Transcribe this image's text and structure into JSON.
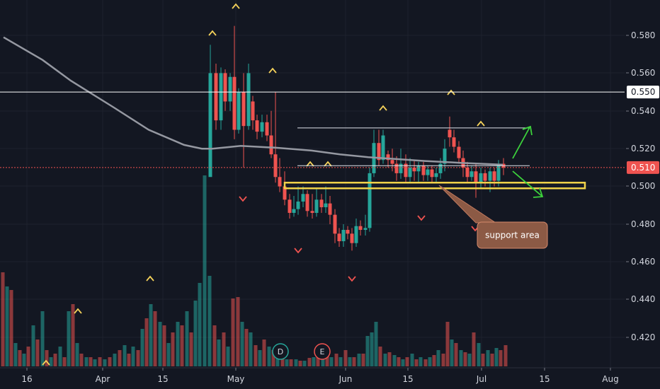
{
  "chart_data": {
    "type": "candlestick",
    "y_axis": {
      "side": "right",
      "ticks": [
        "0.580",
        "0.560",
        "0.540",
        "0.520",
        "0.500",
        "0.480",
        "0.460",
        "0.440",
        "0.420"
      ],
      "range": [
        0.4035,
        0.5915
      ]
    },
    "x_axis": {
      "ticks": [
        "16",
        "Apr",
        "15",
        "May",
        "Jun",
        "15",
        "Jul",
        "15",
        "Aug"
      ]
    },
    "price_labels": [
      {
        "value": "0.550",
        "style": "resistance"
      },
      {
        "value": "0.510",
        "style": "current"
      }
    ],
    "horizontal_lines": [
      {
        "value": 0.55,
        "color": "#ffffff"
      },
      {
        "value": 0.51,
        "color": "#ef5350",
        "dashed": true
      }
    ],
    "drawn_levels": [
      0.531,
      0.511
    ],
    "support_zone": {
      "low": 0.499,
      "high": 0.502
    },
    "annotation": {
      "text": "support area"
    },
    "event_markers": [
      {
        "label": "D",
        "color": "#26a69a"
      },
      {
        "label": "E",
        "color": "#ef5350"
      }
    ],
    "colors": {
      "bull": "#26a69a",
      "bear": "#ef5350",
      "moving_average": "#9598a1",
      "support_zone": "#f0d24a",
      "arrows": "#3cd23c",
      "fractal_up": "#f5d25a",
      "fractal_down": "#ef5350",
      "background": "#131722"
    }
  }
}
